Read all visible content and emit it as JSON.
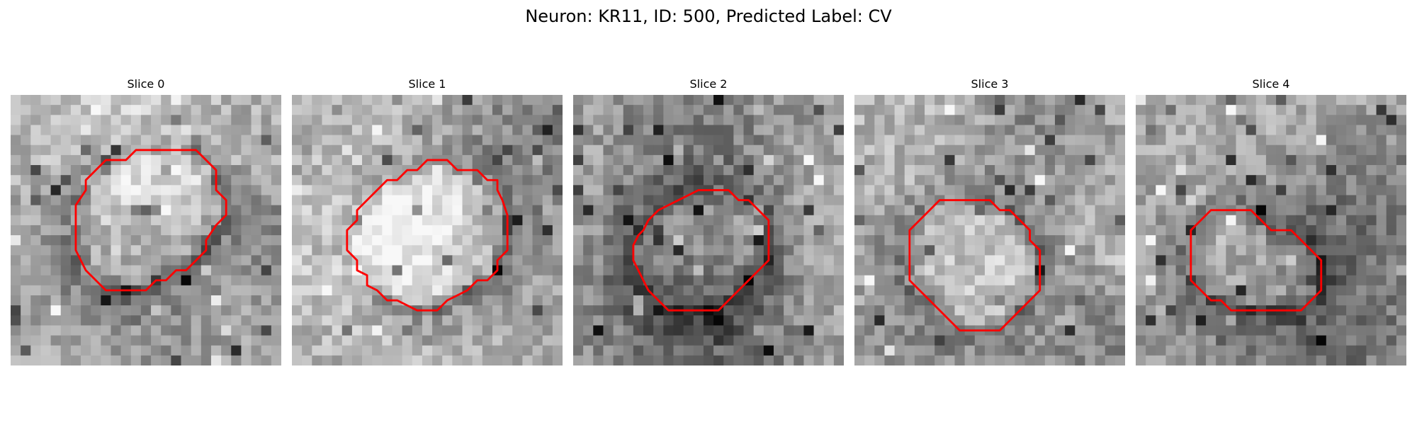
{
  "figure": {
    "title": "Neuron: KR11, ID: 500, Predicted Label: CV"
  },
  "overlay_color": "#ff0000",
  "panels": [
    {
      "title": "Slice 0",
      "image": "grayscale microscopy crop",
      "contour": [
        [
          15.5,
          5.5
        ],
        [
          18.5,
          5.5
        ],
        [
          20.5,
          7.5
        ],
        [
          20.5,
          9.5
        ],
        [
          21.5,
          10.5
        ],
        [
          21.5,
          12.0
        ],
        [
          20.5,
          13.0
        ],
        [
          19.5,
          14.5
        ],
        [
          19.5,
          15.5
        ],
        [
          18.5,
          16.5
        ],
        [
          17.5,
          17.5
        ],
        [
          16.5,
          17.5
        ],
        [
          15.5,
          18.5
        ],
        [
          14.5,
          18.5
        ],
        [
          13.5,
          19.5
        ],
        [
          9.5,
          19.5
        ],
        [
          8.5,
          18.5
        ],
        [
          7.5,
          17.5
        ],
        [
          6.5,
          15.5
        ],
        [
          6.5,
          13.0
        ],
        [
          6.5,
          11.0
        ],
        [
          7.5,
          9.5
        ],
        [
          7.5,
          8.5
        ],
        [
          8.5,
          7.5
        ],
        [
          9.5,
          6.5
        ],
        [
          11.5,
          6.5
        ],
        [
          12.5,
          5.5
        ],
        [
          13.5,
          5.5
        ],
        [
          14.5,
          5.5
        ]
      ]
    },
    {
      "title": "Slice 1",
      "image": "grayscale microscopy crop",
      "contour": [
        [
          16.5,
          7.5
        ],
        [
          18.5,
          7.5
        ],
        [
          19.5,
          8.5
        ],
        [
          20.5,
          8.5
        ],
        [
          20.5,
          9.5
        ],
        [
          21.0,
          10.5
        ],
        [
          21.5,
          12.0
        ],
        [
          21.5,
          15.5
        ],
        [
          20.5,
          16.5
        ],
        [
          20.5,
          17.5
        ],
        [
          19.5,
          18.5
        ],
        [
          18.5,
          18.5
        ],
        [
          17.5,
          19.5
        ],
        [
          16.5,
          20.0
        ],
        [
          15.5,
          20.5
        ],
        [
          14.5,
          21.5
        ],
        [
          13.5,
          21.5
        ],
        [
          12.5,
          21.5
        ],
        [
          11.5,
          21.0
        ],
        [
          10.5,
          20.5
        ],
        [
          9.5,
          20.5
        ],
        [
          8.5,
          19.5
        ],
        [
          7.5,
          19.0
        ],
        [
          7.5,
          18.0
        ],
        [
          6.5,
          17.5
        ],
        [
          6.5,
          16.5
        ],
        [
          5.5,
          15.5
        ],
        [
          5.5,
          13.5
        ],
        [
          6.5,
          12.5
        ],
        [
          6.5,
          11.5
        ],
        [
          7.5,
          10.5
        ],
        [
          8.5,
          9.5
        ],
        [
          9.5,
          8.5
        ],
        [
          10.5,
          8.5
        ],
        [
          11.5,
          7.5
        ],
        [
          12.5,
          7.5
        ],
        [
          13.5,
          6.5
        ],
        [
          14.5,
          6.5
        ],
        [
          15.5,
          6.5
        ]
      ]
    },
    {
      "title": "Slice 2",
      "image": "grayscale microscopy crop",
      "contour": [
        [
          12.5,
          9.5
        ],
        [
          15.5,
          9.5
        ],
        [
          16.5,
          10.5
        ],
        [
          17.5,
          10.5
        ],
        [
          18.5,
          11.5
        ],
        [
          19.5,
          12.5
        ],
        [
          19.5,
          16.5
        ],
        [
          18.5,
          17.5
        ],
        [
          17.5,
          18.5
        ],
        [
          16.5,
          19.5
        ],
        [
          15.5,
          20.5
        ],
        [
          14.5,
          21.5
        ],
        [
          9.5,
          21.5
        ],
        [
          8.5,
          20.5
        ],
        [
          7.5,
          19.5
        ],
        [
          7.0,
          18.5
        ],
        [
          6.5,
          17.5
        ],
        [
          6.0,
          16.5
        ],
        [
          6.0,
          15.0
        ],
        [
          6.5,
          14.0
        ],
        [
          7.0,
          13.5
        ],
        [
          7.5,
          12.5
        ],
        [
          8.5,
          11.5
        ],
        [
          9.5,
          11.0
        ],
        [
          10.5,
          10.5
        ],
        [
          11.5,
          10.0
        ]
      ]
    },
    {
      "title": "Slice 3",
      "image": "grayscale microscopy crop",
      "contour": [
        [
          8.5,
          10.5
        ],
        [
          13.5,
          10.5
        ],
        [
          14.5,
          11.5
        ],
        [
          15.5,
          11.5
        ],
        [
          16.5,
          12.5
        ],
        [
          17.5,
          13.5
        ],
        [
          17.5,
          14.5
        ],
        [
          18.5,
          15.5
        ],
        [
          18.5,
          19.5
        ],
        [
          17.5,
          20.5
        ],
        [
          16.5,
          21.5
        ],
        [
          15.5,
          22.5
        ],
        [
          14.5,
          23.5
        ],
        [
          10.5,
          23.5
        ],
        [
          9.5,
          22.5
        ],
        [
          8.5,
          21.5
        ],
        [
          7.5,
          20.5
        ],
        [
          6.5,
          19.5
        ],
        [
          5.5,
          18.5
        ],
        [
          5.5,
          13.5
        ],
        [
          6.5,
          12.5
        ],
        [
          7.5,
          11.5
        ]
      ]
    },
    {
      "title": "Slice 4",
      "image": "grayscale microscopy crop",
      "contour": [
        [
          7.5,
          11.5
        ],
        [
          11.5,
          11.5
        ],
        [
          13.5,
          13.5
        ],
        [
          15.5,
          13.5
        ],
        [
          16.5,
          14.5
        ],
        [
          17.5,
          15.5
        ],
        [
          18.5,
          16.5
        ],
        [
          18.5,
          19.5
        ],
        [
          17.5,
          20.5
        ],
        [
          16.5,
          21.5
        ],
        [
          15.5,
          21.5
        ],
        [
          10.5,
          21.5
        ],
        [
          9.5,
          21.5
        ],
        [
          8.5,
          20.5
        ],
        [
          7.5,
          20.5
        ],
        [
          6.5,
          19.5
        ],
        [
          5.5,
          18.5
        ],
        [
          5.5,
          13.5
        ],
        [
          6.5,
          12.5
        ]
      ]
    }
  ]
}
